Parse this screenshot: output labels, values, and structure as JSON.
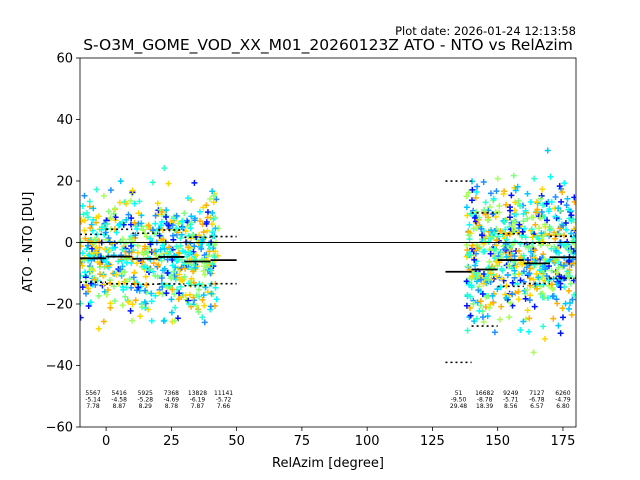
{
  "chart_data": {
    "type": "scatter",
    "title": "S-O3M_GOME_VOD_XX_M01_20260123Z ATO - NTO vs RelAzim",
    "plot_date": "Plot date: 2026-01-24 12:13:58",
    "xlabel": "RelAzim [degree]",
    "ylabel": "ATO - NTO [DU]",
    "xlim": [
      -10,
      180
    ],
    "ylim": [
      -60,
      60
    ],
    "xticks": [
      0,
      25,
      50,
      75,
      100,
      125,
      150,
      175
    ],
    "yticks": [
      -60,
      -40,
      -20,
      0,
      20,
      40,
      60
    ],
    "zero_line": 0,
    "point_colors": [
      "#00ffff",
      "#2bffd0",
      "#7dff7d",
      "#a6ff5a",
      "#00c8ff",
      "#1e90ff",
      "#0014ff",
      "#ffd700",
      "#ffb000"
    ],
    "scatter_clusters": [
      {
        "x_range": [
          -10,
          43
        ],
        "y_center": -4,
        "y_spread": 16
      },
      {
        "x_range": [
          138,
          180
        ],
        "y_center": -3,
        "y_spread": 18
      }
    ],
    "bins": [
      {
        "x_range": [
          -10,
          0
        ],
        "count": "5567",
        "mean": "-5.14",
        "std": "7.78",
        "mean_value": -5.14,
        "std_value": 7.78
      },
      {
        "x_range": [
          0,
          10
        ],
        "count": "5416",
        "mean": "-4.58",
        "std": "8.87",
        "mean_value": -4.58,
        "std_value": 8.87
      },
      {
        "x_range": [
          10,
          20
        ],
        "count": "5925",
        "mean": "-5.28",
        "std": "8.29",
        "mean_value": -5.28,
        "std_value": 8.29
      },
      {
        "x_range": [
          20,
          30
        ],
        "count": "7368",
        "mean": "-4.69",
        "std": "8.78",
        "mean_value": -4.69,
        "std_value": 8.78
      },
      {
        "x_range": [
          30,
          40
        ],
        "count": "13828",
        "mean": "-6.19",
        "std": "7.87",
        "mean_value": -6.19,
        "std_value": 7.87
      },
      {
        "x_range": [
          40,
          50
        ],
        "count": "11141",
        "mean": "-5.72",
        "std": "7.66",
        "mean_value": -5.72,
        "std_value": 7.66
      },
      {
        "x_range": [
          130,
          140
        ],
        "count": "51",
        "mean": "-9.50",
        "std": "29.48",
        "mean_value": -9.5,
        "std_value": 29.48
      },
      {
        "x_range": [
          140,
          150
        ],
        "count": "16682",
        "mean": "-8.78",
        "std": "18.39",
        "mean_value": -8.78,
        "std_value": 18.39
      },
      {
        "x_range": [
          150,
          160
        ],
        "count": "9249",
        "mean": "-5.71",
        "std": "8.56",
        "mean_value": -5.71,
        "std_value": 8.56
      },
      {
        "x_range": [
          160,
          170
        ],
        "count": "7127",
        "mean": "-6.78",
        "std": "6.57",
        "mean_value": -6.78,
        "std_value": 6.57
      },
      {
        "x_range": [
          170,
          180
        ],
        "count": "6260",
        "mean": "-4.79",
        "std": "6.80",
        "mean_value": -4.79,
        "std_value": 6.8
      }
    ]
  }
}
